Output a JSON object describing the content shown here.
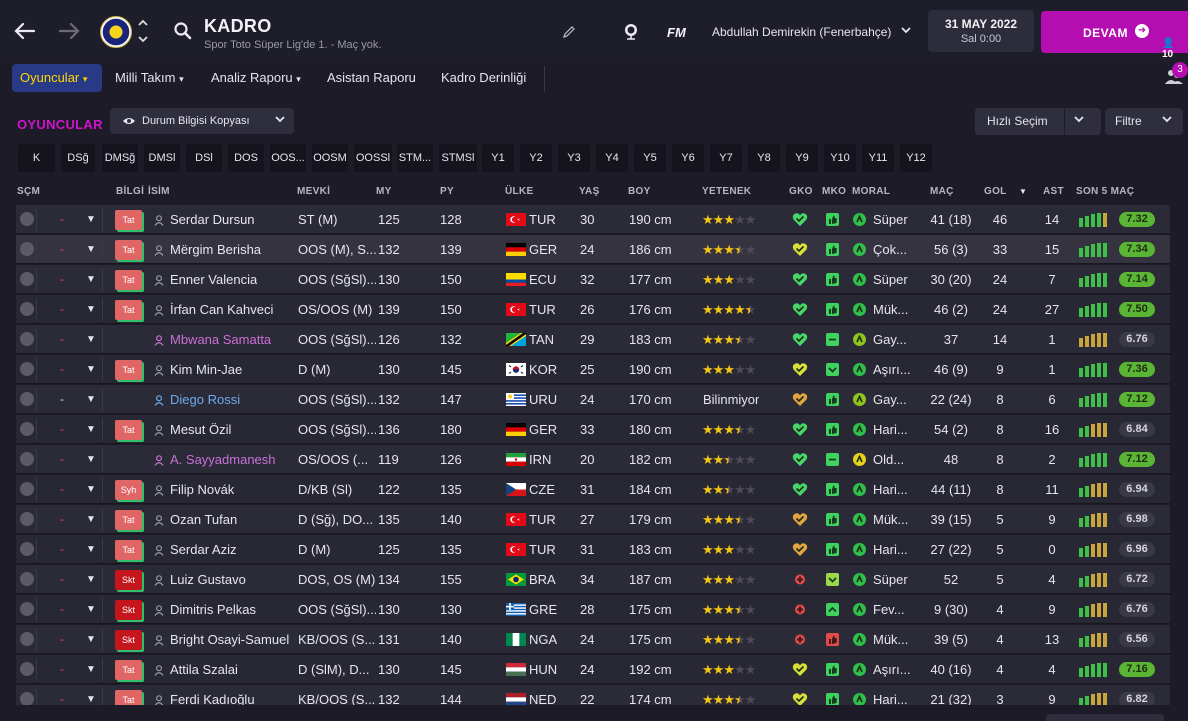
{
  "header": {
    "title": "KADRO",
    "subtitle": "Spor Toto Süper Lig'de 1. - Maç yok.",
    "fm_logo": "FM",
    "manager": "Abdullah Demirekin (Fenerbahçe)",
    "date": "31 MAY 2022",
    "time": "Sal 0:00",
    "continue_label": "DEVAM",
    "continue_count": "10",
    "icons": [
      "back-icon",
      "forward-icon",
      "club-crest",
      "search-icon",
      "pencil-icon",
      "globe-icon",
      "chevron-down-icon",
      "arrow-right-icon"
    ]
  },
  "subnav": {
    "items": [
      "Oyuncular",
      "Milli Takım",
      "Analiz Raporu",
      "Asistan Raporu",
      "Kadro Derinliği"
    ],
    "notifications": "3"
  },
  "section": {
    "title": "OYUNCULAR",
    "view_label": "Durum Bilgisi Kopyası",
    "quick_pick": "Hızlı Seçim",
    "filter": "Filtre"
  },
  "chips": [
    "K",
    "DSğ",
    "DMSğ",
    "DMSl",
    "DSl",
    "DOS",
    "OOS...",
    "OOSM",
    "OOSSl",
    "STM...",
    "STMSl",
    "Y1",
    "Y2",
    "Y3",
    "Y4",
    "Y5",
    "Y6",
    "Y7",
    "Y8",
    "Y9",
    "Y10",
    "Y11",
    "Y12"
  ],
  "columns": {
    "scm": "SÇM",
    "bilgi": "BİLGİ",
    "isim": "İSİM",
    "mevki": "MEVKİ",
    "my": "MY",
    "py": "PY",
    "ulke": "ÜLKE",
    "yas": "YAŞ",
    "boy": "BOY",
    "yetenek": "YETENEK",
    "gko": "GKO",
    "mko": "MKO",
    "moral": "MORAL",
    "mac": "MAÇ",
    "gol": "GOL",
    "sort": "▼",
    "ast": "AST",
    "son5": "SON 5 MAÇ"
  },
  "colors": {
    "accent_magenta": "#b40eb0",
    "active_tab_bg": "#283a86",
    "active_tab_text": "#ffd600",
    "rating_good": "#5bb534",
    "star": "#f6c514"
  },
  "players": [
    {
      "dash": "-",
      "tag": "Tat",
      "name": "Serdar Dursun",
      "name_style": "normal",
      "pos": "ST (M)",
      "my": "125",
      "py": "128",
      "flag": "TUR",
      "nation": "TUR",
      "age": "30",
      "height": "190 cm",
      "stars": 3,
      "gko": "green",
      "mko": "thumb",
      "moral_color": "#2fbf4a",
      "moral": "Süper",
      "apps": "41 (18)",
      "goals": "46",
      "assists": "14",
      "form": [
        "g",
        "g",
        "g",
        "g",
        "y"
      ],
      "rating": "7.32",
      "rating_good": true
    },
    {
      "dash": "-",
      "tag": "Tat",
      "name": "Mërgim Berisha",
      "name_style": "normal",
      "pos": "OOS (M), S...",
      "my": "132",
      "py": "139",
      "flag": "GER",
      "nation": "GER",
      "age": "24",
      "height": "186 cm",
      "stars": 3.5,
      "gko": "yellow",
      "mko": "thumb",
      "moral_color": "#2fbf4a",
      "moral": "Çok...",
      "apps": "56 (3)",
      "goals": "33",
      "assists": "15",
      "form": [
        "g",
        "g",
        "g",
        "g",
        "g"
      ],
      "rating": "7.34",
      "rating_good": true
    },
    {
      "dash": "-",
      "tag": "Tat",
      "name": "Enner Valencia",
      "name_style": "normal",
      "pos": "OOS (SğSl)...",
      "my": "130",
      "py": "150",
      "flag": "ECU",
      "nation": "ECU",
      "age": "32",
      "height": "177 cm",
      "stars": 3,
      "gko": "green",
      "mko": "thumb",
      "moral_color": "#2fbf4a",
      "moral": "Süper",
      "apps": "30 (20)",
      "goals": "24",
      "assists": "7",
      "form": [
        "g",
        "g",
        "g",
        "g",
        "g"
      ],
      "rating": "7.14",
      "rating_good": true
    },
    {
      "dash": "-",
      "tag": "Tat",
      "name": "İrfan Can Kahveci",
      "name_style": "normal",
      "pos": "OS/OOS (M)",
      "my": "139",
      "py": "150",
      "flag": "TUR",
      "nation": "TUR",
      "age": "26",
      "height": "176 cm",
      "stars": 4.5,
      "gko": "green",
      "mko": "thumb",
      "moral_color": "#2fbf4a",
      "moral": "Mük...",
      "apps": "46 (2)",
      "goals": "24",
      "assists": "27",
      "form": [
        "g",
        "g",
        "g",
        "g",
        "g"
      ],
      "rating": "7.50",
      "rating_good": true
    },
    {
      "dash": "-",
      "tag": "",
      "name": "Mbwana Samatta",
      "name_style": "purple",
      "pos": "OOS (SğSl)...",
      "my": "126",
      "py": "132",
      "flag": "TAN",
      "nation": "TAN",
      "age": "29",
      "height": "183 cm",
      "stars": 3.5,
      "gko": "green",
      "mko": "minus",
      "moral_color": "#8fc41e",
      "moral": "Gay...",
      "apps": "37",
      "goals": "14",
      "assists": "1",
      "form": [
        "y",
        "y",
        "y",
        "y",
        "y"
      ],
      "rating": "6.76",
      "rating_good": false
    },
    {
      "dash": "-",
      "tag": "Tat",
      "name": "Kim Min-Jae",
      "name_style": "normal",
      "pos": "D (M)",
      "my": "130",
      "py": "145",
      "flag": "KOR",
      "nation": "KOR",
      "age": "25",
      "height": "190 cm",
      "stars": 3,
      "gko": "yellow",
      "mko": "check",
      "moral_color": "#2fbf4a",
      "moral": "Aşırı...",
      "apps": "46 (9)",
      "goals": "9",
      "assists": "1",
      "form": [
        "g",
        "g",
        "g",
        "g",
        "g"
      ],
      "rating": "7.36",
      "rating_good": true
    },
    {
      "dash": "-",
      "dash_gray": true,
      "tag": "",
      "name": "Diego Rossi",
      "name_style": "blue",
      "pos": "OOS (SğSl)...",
      "my": "132",
      "py": "147",
      "flag": "URU",
      "nation": "URU",
      "age": "24",
      "height": "170 cm",
      "stars": 0,
      "unknown": "Bilinmiyor",
      "gko": "orange",
      "mko": "thumb",
      "moral_color": "#8fc41e",
      "moral": "Gay...",
      "apps": "22 (24)",
      "goals": "8",
      "assists": "6",
      "form": [
        "g",
        "g",
        "g",
        "g",
        "g"
      ],
      "rating": "7.12",
      "rating_good": true
    },
    {
      "dash": "-",
      "tag": "Tat",
      "name": "Mesut Özil",
      "name_style": "normal",
      "pos": "OOS (SğSl)...",
      "my": "136",
      "py": "180",
      "flag": "GER",
      "nation": "GER",
      "age": "33",
      "height": "180 cm",
      "stars": 3.5,
      "gko": "green",
      "mko": "thumb",
      "moral_color": "#2fbf4a",
      "moral": "Hari...",
      "apps": "54 (2)",
      "goals": "8",
      "assists": "16",
      "form": [
        "g",
        "g",
        "y",
        "y",
        "y"
      ],
      "rating": "6.84",
      "rating_good": false
    },
    {
      "dash": "-",
      "tag": "",
      "name": "A. Sayyadmanesh",
      "name_style": "purple",
      "pos": "OS/OOS (...",
      "my": "119",
      "py": "126",
      "flag": "IRN",
      "nation": "IRN",
      "age": "20",
      "height": "182 cm",
      "stars": 2.5,
      "gko": "green",
      "mko": "minus",
      "moral_color": "#e6d21a",
      "moral": "Old...",
      "apps": "48",
      "goals": "8",
      "assists": "2",
      "form": [
        "g",
        "g",
        "g",
        "g",
        "g"
      ],
      "rating": "7.12",
      "rating_good": true
    },
    {
      "dash": "-",
      "tag": "Syh",
      "name": "Filip Novák",
      "name_style": "normal",
      "pos": "D/KB (Sl)",
      "my": "122",
      "py": "135",
      "flag": "CZE",
      "nation": "CZE",
      "age": "31",
      "height": "184 cm",
      "stars": 2.5,
      "gko": "green",
      "mko": "thumb",
      "moral_color": "#2fbf4a",
      "moral": "Hari...",
      "apps": "44 (11)",
      "goals": "8",
      "assists": "11",
      "form": [
        "g",
        "g",
        "y",
        "y",
        "y"
      ],
      "rating": "6.94",
      "rating_good": false
    },
    {
      "dash": "-",
      "tag": "Tat",
      "name": "Ozan Tufan",
      "name_style": "normal",
      "pos": "D (Sğ), DO...",
      "my": "135",
      "py": "140",
      "flag": "TUR",
      "nation": "TUR",
      "age": "27",
      "height": "179 cm",
      "stars": 3.5,
      "gko": "orange",
      "mko": "thumb",
      "moral_color": "#2fbf4a",
      "moral": "Mük...",
      "apps": "39 (15)",
      "goals": "5",
      "assists": "9",
      "form": [
        "g",
        "g",
        "y",
        "y",
        "y"
      ],
      "rating": "6.98",
      "rating_good": false
    },
    {
      "dash": "-",
      "tag": "Tat",
      "name": "Serdar Aziz",
      "name_style": "normal",
      "pos": "D (M)",
      "my": "125",
      "py": "135",
      "flag": "TUR",
      "nation": "TUR",
      "age": "31",
      "height": "183 cm",
      "stars": 3,
      "gko": "orange",
      "mko": "thumb",
      "moral_color": "#2fbf4a",
      "moral": "Hari...",
      "apps": "27 (22)",
      "goals": "5",
      "assists": "0",
      "form": [
        "g",
        "g",
        "y",
        "y",
        "y"
      ],
      "rating": "6.96",
      "rating_good": false
    },
    {
      "dash": "-",
      "tag": "Skt",
      "name": "Luiz Gustavo",
      "name_style": "normal",
      "pos": "DOS, OS (M)",
      "my": "134",
      "py": "155",
      "flag": "BRA",
      "nation": "BRA",
      "age": "34",
      "height": "187 cm",
      "stars": 3,
      "gko": "red",
      "mko": "chevron",
      "moral_color": "#2fbf4a",
      "moral": "Süper",
      "apps": "52",
      "goals": "5",
      "assists": "4",
      "form": [
        "g",
        "g",
        "y",
        "y",
        "y"
      ],
      "rating": "6.72",
      "rating_good": false
    },
    {
      "dash": "-",
      "tag": "Skt",
      "name": "Dimitris Pelkas",
      "name_style": "normal",
      "pos": "OOS (SğSl)...",
      "my": "130",
      "py": "130",
      "flag": "GRE",
      "nation": "GRE",
      "age": "28",
      "height": "175 cm",
      "stars": 3.5,
      "gko": "red",
      "mko": "up",
      "moral_color": "#2fbf4a",
      "moral": "Fev...",
      "apps": "9 (30)",
      "goals": "4",
      "assists": "9",
      "form": [
        "g",
        "g",
        "y",
        "y",
        "y"
      ],
      "rating": "6.76",
      "rating_good": false
    },
    {
      "dash": "-",
      "tag": "Skt",
      "name": "Bright Osayi-Samuel",
      "name_style": "normal",
      "pos": "KB/OOS (S...",
      "my": "131",
      "py": "140",
      "flag": "NGA",
      "nation": "NGA",
      "age": "24",
      "height": "175 cm",
      "stars": 3.5,
      "gko": "red",
      "mko": "thumb-red",
      "moral_color": "#2fbf4a",
      "moral": "Mük...",
      "apps": "39 (5)",
      "goals": "4",
      "assists": "13",
      "form": [
        "g",
        "g",
        "y",
        "y",
        "y"
      ],
      "rating": "6.56",
      "rating_good": false
    },
    {
      "dash": "-",
      "tag": "Tat",
      "name": "Attila Szalai",
      "name_style": "normal",
      "pos": "D (SlM), D...",
      "my": "130",
      "py": "145",
      "flag": "HUN",
      "nation": "HUN",
      "age": "24",
      "height": "192 cm",
      "stars": 3,
      "gko": "yellow",
      "mko": "thumb",
      "moral_color": "#2fbf4a",
      "moral": "Aşırı...",
      "apps": "40 (16)",
      "goals": "4",
      "assists": "4",
      "form": [
        "g",
        "g",
        "g",
        "g",
        "g"
      ],
      "rating": "7.16",
      "rating_good": true
    },
    {
      "dash": "-",
      "tag": "Tat",
      "name": "Ferdi Kadıoğlu",
      "name_style": "normal",
      "pos": "KB/OOS (S...",
      "my": "132",
      "py": "144",
      "flag": "NED",
      "nation": "NED",
      "age": "22",
      "height": "174 cm",
      "stars": 3.5,
      "gko": "yellow",
      "mko": "thumb",
      "moral_color": "#2fbf4a",
      "moral": "Hari...",
      "apps": "21 (32)",
      "goals": "3",
      "assists": "9",
      "form": [
        "g",
        "g",
        "y",
        "y",
        "y"
      ],
      "rating": "6.82",
      "rating_good": false
    }
  ]
}
